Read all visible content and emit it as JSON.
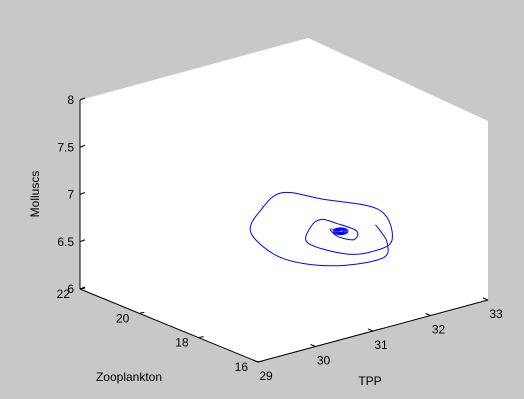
{
  "chart_data": {
    "type": "line",
    "projection": "3d",
    "title": "",
    "series": [
      {
        "color": "#0000ff",
        "points": [
          [
            32.05,
            17.95,
            6.7
          ],
          [
            31.9,
            17.5,
            6.72
          ],
          [
            31.8,
            17.08,
            6.67
          ],
          [
            31.5,
            16.6,
            6.62
          ],
          [
            31.0,
            16.9,
            6.58
          ],
          [
            30.55,
            17.45,
            6.6
          ],
          [
            30.38,
            18.15,
            6.64
          ],
          [
            30.52,
            19.2,
            6.72
          ],
          [
            31.03,
            19.82,
            6.79
          ],
          [
            31.48,
            20.0,
            6.87
          ],
          [
            31.93,
            19.53,
            6.79
          ],
          [
            32.35,
            18.4,
            6.75
          ],
          [
            31.95,
            17.2,
            6.65
          ],
          [
            31.48,
            17.0,
            6.63
          ],
          [
            31.18,
            17.3,
            6.62
          ],
          [
            30.95,
            18.1,
            6.67
          ],
          [
            31.32,
            18.7,
            6.71
          ],
          [
            31.55,
            18.8,
            6.73
          ],
          [
            31.68,
            18.55,
            6.7
          ],
          [
            31.72,
            17.95,
            6.69
          ],
          [
            31.52,
            17.65,
            6.67
          ],
          [
            31.38,
            17.9,
            6.69
          ],
          [
            31.44,
            18.3,
            6.71
          ],
          [
            31.52,
            18.1,
            6.7
          ]
        ]
      }
    ],
    "axes": {
      "x": {
        "label": "TPP",
        "range": [
          29,
          33
        ],
        "ticks": [
          "29",
          "30",
          "31",
          "32",
          "33"
        ]
      },
      "y": {
        "label": "Zooplankton",
        "range": [
          16,
          22
        ],
        "ticks": [
          "16",
          "18",
          "20",
          "22"
        ]
      },
      "z": {
        "label": "Molluscs",
        "range": [
          6,
          8
        ],
        "ticks": [
          "6",
          "6.5",
          "7",
          "7.5",
          "8"
        ]
      }
    },
    "grid": false,
    "box": true
  },
  "colors": {
    "figure_bg": "#c8c8c8",
    "axes_bg": "#ffffff",
    "line": "#0000ff"
  }
}
